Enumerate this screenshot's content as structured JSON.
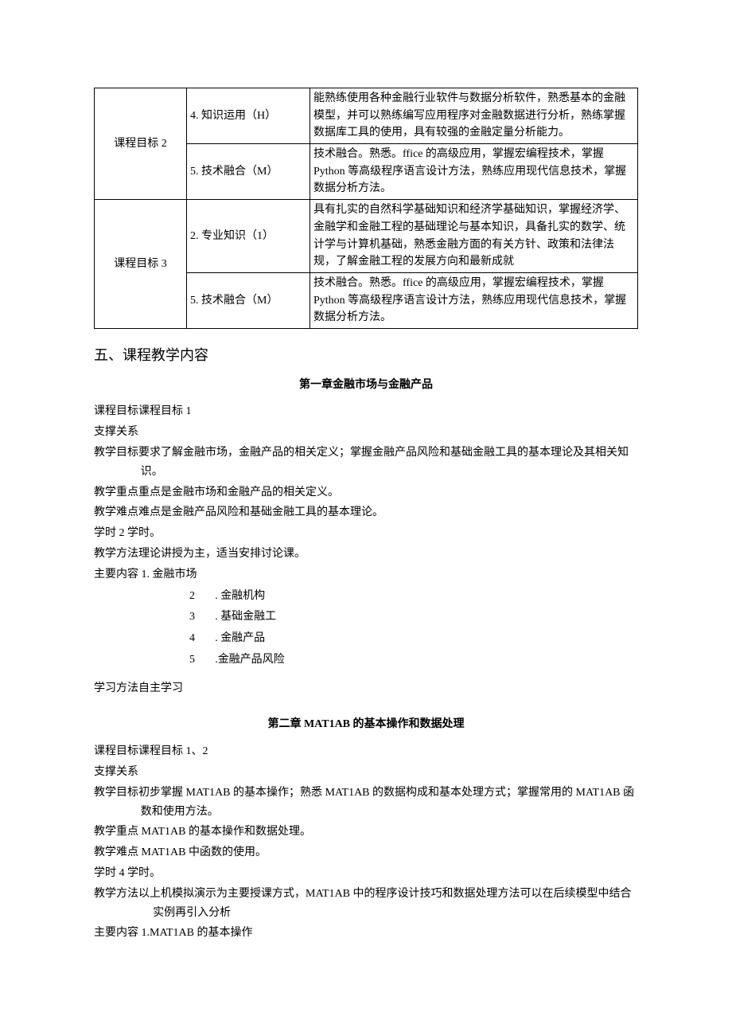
{
  "table": {
    "rows": [
      {
        "goal": "课程目标 2",
        "req": "4. 知识运用（H）",
        "desc": "能熟练使用各种金融行业软件与数据分析软件，熟悉基本的金融模型，并可以熟练编写应用程序对金融数据进行分析，熟练掌握数据库工具的使用，具有较强的金融定量分析能力。",
        "rowspan": 2
      },
      {
        "goal": "",
        "req": "5. 技术融合（M）",
        "desc": "技术融合。熟悉。ffice 的高级应用，掌握宏编程技术，掌握 Python 等高级程序语言设计方法，熟练应用现代信息技术，掌握数据分析方法。"
      },
      {
        "goal": "课程目标 3",
        "req": "2. 专业知识（1）",
        "desc": "具有扎实的自然科学基础知识和经济学基础知识，掌握经济学、金融学和金融工程的基础理论与基本知识，具备扎实的数学、统计学与计算机基础，熟悉金融方面的有关方针、政策和法律法规，了解金融工程的发展方向和最新成就",
        "rowspan": 2
      },
      {
        "goal": "",
        "req": "5. 技术融合（M）",
        "desc": "技术融合。熟悉。ffice 的高级应用，掌握宏编程技术，掌握 Python 等高级程序语言设计方法，熟练应用现代信息技术，掌握数据分析方法。"
      }
    ]
  },
  "section5_title": "五、课程教学内容",
  "chapter1": {
    "title": "第一章金融市场与金融产品",
    "goal_line": "课程目标课程目标 1",
    "support_line": "支撑关系",
    "objective_label": "教学目标",
    "objective_text": "要求了解金融市场，金融产品的相关定义；掌握金融产品风险和基础金融工具的基本理论及其相关知识。",
    "focus_line": "教学重点重点是金融市场和金融产品的相关定义。",
    "difficulty_line": "教学难点难点是金融产品风险和基础金融工具的基本理论。",
    "hours_line": "学时 2 学时。",
    "method_line": "教学方法理论讲授为主，适当安排讨论课。",
    "content_first": "主要内容 1. 金融市场",
    "content_items": [
      {
        "n": "2",
        "txt": ". 金融机构"
      },
      {
        "n": "3",
        "txt": ". 基础金融工"
      },
      {
        "n": "4",
        "txt": ". 金融产品"
      },
      {
        "n": "5",
        "txt": ".金融产品风险"
      }
    ],
    "study_method": "学习方法自主学习"
  },
  "chapter2": {
    "title": "第二章 MAT1AB 的基本操作和数据处理",
    "goal_line": "课程目标课程目标 1、2",
    "support_line": "支撑关系",
    "objective_label": "教学目标",
    "objective_text": "初步掌握 MAT1AB 的基本操作；熟悉 MAT1AB 的数据构成和基本处理方式；掌握常用的 MAT1AB 函数和使用方法。",
    "focus_line": "教学重点 MAT1AB 的基本操作和数据处理。",
    "difficulty_line": "教学难点 MAT1AB 中函数的使用。",
    "hours_line": "学时 4 学时。",
    "method_label": "教学方法",
    "method_text": "以上机模拟演示为主要授课方式，MAT1AB 中的程序设计技巧和数据处理方法可以在后续模型中结合实例再引入分析",
    "content_first": "主要内容 1.MAT1AB 的基本操作"
  }
}
